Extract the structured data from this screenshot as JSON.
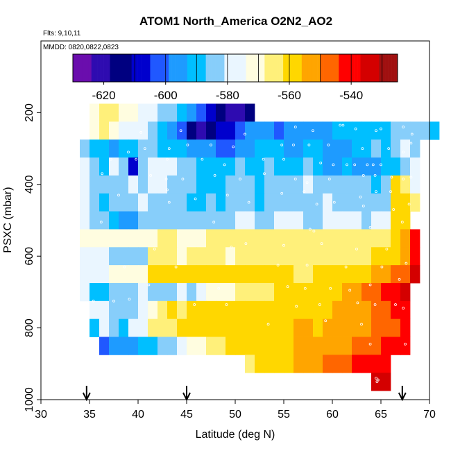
{
  "chart_data": {
    "type": "heatmap",
    "title": "ATOM1 North_America O2N2_AO2",
    "flights_note": "Flts: 9,10,11",
    "dates_note": "MMDD: 0820,0822,0823",
    "xlabel": "Latitude (deg N)",
    "ylabel": "PSXC (mbar)",
    "xlim": [
      30,
      70
    ],
    "ylim": [
      1000,
      0
    ],
    "x_ticks": [
      30,
      35,
      40,
      45,
      50,
      55,
      60,
      65,
      70
    ],
    "y_ticks": [
      200,
      400,
      600,
      800,
      1000
    ],
    "x_tick_labels": [
      "30",
      "35",
      "40",
      "45",
      "50",
      "55",
      "60",
      "65",
      "70"
    ],
    "y_tick_labels": [
      "200",
      "400",
      "600",
      "800",
      "1000"
    ],
    "colorbar": {
      "min": -630,
      "max": -525,
      "ticks": [
        -620,
        -600,
        -580,
        -560,
        -540
      ],
      "tick_labels": [
        "-620",
        "-600",
        "-580",
        "-560",
        "-540"
      ],
      "breaks": [
        -610,
        -600,
        -590,
        -580,
        -570,
        -560,
        -550,
        -540,
        -530
      ],
      "colors": [
        "#6a0dad",
        "#2e0bb0",
        "#000080",
        "#0000cd",
        "#2058ff",
        "#1e9bff",
        "#00bfff",
        "#87cefa",
        "#eaf6ff",
        "#fffde0",
        "#fff07a",
        "#ffd700",
        "#ffa500",
        "#ff6600",
        "#ff0000",
        "#d40000",
        "#a01010"
      ]
    },
    "lat_bin_width": 1,
    "pressure_bin_width": 50,
    "lat_start": 35,
    "grid_rows": [
      {
        "p": 200,
        "lat0": 35,
        "values": [
          -574,
          -565,
          -567,
          -572,
          -574,
          -578,
          -580,
          -584,
          -586,
          -590,
          -595,
          -600,
          -608,
          -614,
          -620,
          -618,
          -612
        ]
      },
      {
        "p": 250,
        "lat0": 35,
        "values": [
          -572,
          -568,
          -574,
          -578,
          -576,
          -575,
          -582,
          -592,
          -598,
          -605,
          -615,
          -618,
          -614,
          -610,
          -606,
          -602,
          -598,
          -596,
          -598,
          -600,
          -598,
          -596,
          -594,
          -596,
          -594,
          -592,
          -590,
          -588,
          -592,
          -590,
          -588,
          -586,
          -585,
          -584,
          -586,
          -592
        ]
      },
      {
        "p": 300,
        "lat0": 34,
        "values": [
          -582,
          -588,
          -592,
          -594,
          -590,
          -588,
          -582,
          -584,
          -588,
          -590,
          -592,
          -596,
          -598,
          -598,
          -600,
          -602,
          -596,
          -594,
          -590,
          -588,
          -592,
          -598,
          -594,
          -590,
          -592,
          -596,
          -598,
          -594,
          -590,
          -588,
          -586,
          -590,
          -584,
          -580,
          -582
        ]
      },
      {
        "p": 350,
        "lat0": 34,
        "values": [
          -580,
          -585,
          -588,
          -575,
          -582,
          -608,
          -586,
          -580,
          -579,
          -578,
          -582,
          -586,
          -588,
          -590,
          -592,
          -588,
          -586,
          -588,
          -590,
          -584,
          -588,
          -592,
          -592,
          -586,
          -590,
          -596,
          -596,
          -592,
          -594,
          -596,
          -598,
          -592,
          -588,
          -584,
          -578
        ]
      },
      {
        "p": 400,
        "lat0": 34,
        "values": [
          -580,
          -582,
          -586,
          -584,
          -582,
          -580,
          -584,
          -580,
          -578,
          -582,
          -584,
          -586,
          -588,
          -590,
          -590,
          -584,
          -582,
          -584,
          -588,
          -586,
          -586,
          -584,
          -582,
          -580,
          -582,
          -584,
          -584,
          -584,
          -582,
          -584,
          -588,
          -586,
          -560,
          -568,
          -575
        ]
      },
      {
        "p": 450,
        "lat0": 34,
        "values": [
          -580,
          -584,
          -588,
          -586,
          -584,
          -586,
          -580,
          -584,
          -582,
          -584,
          -586,
          -590,
          -588,
          -586,
          -588,
          -586,
          -584,
          -586,
          -588,
          -584,
          -584,
          -582,
          -584,
          -586,
          -582,
          -580,
          -582,
          -584,
          -584,
          -586,
          -586,
          -582,
          -556,
          -560,
          -566
        ]
      },
      {
        "p": 500,
        "lat0": 34,
        "values": [
          -578,
          -584,
          -586,
          -590,
          -594,
          -598,
          -584,
          -582,
          -582,
          -582,
          -582,
          -584,
          -582,
          -582,
          -582,
          -582,
          -580,
          -580,
          -582,
          -582,
          -580,
          -580,
          -580,
          -582,
          -582,
          -580,
          -580,
          -580,
          -580,
          -582,
          -580,
          -580,
          -556,
          -562
        ]
      },
      {
        "p": 550,
        "lat0": 34,
        "values": [
          -574,
          -572,
          -570,
          -570,
          -570,
          -572,
          -570,
          -570,
          -568,
          -568,
          -570,
          -570,
          -570,
          -568,
          -568,
          -568,
          -568,
          -566,
          -568,
          -568,
          -568,
          -566,
          -568,
          -568,
          -566,
          -568,
          -568,
          -566,
          -566,
          -566,
          -566,
          -564,
          -560,
          -552,
          -540
        ]
      },
      {
        "p": 600,
        "lat0": 34,
        "values": [
          -580,
          -575,
          -578,
          -582,
          -584,
          -586,
          -586,
          -566,
          -565,
          -568,
          -570,
          -566,
          -568,
          -566,
          -567,
          -570,
          -568,
          -567,
          -566,
          -566,
          -568,
          -566,
          -565,
          -564,
          -565,
          -565,
          -566,
          -566,
          -564,
          -566,
          -562,
          -560,
          -556,
          -552,
          -540
        ]
      },
      {
        "p": 650,
        "lat0": 34,
        "values": [
          -578,
          -575,
          -575,
          -574,
          -573,
          -570,
          -570,
          -562,
          -560,
          -562,
          -560,
          -560,
          -560,
          -562,
          -562,
          -560,
          -560,
          -560,
          -558,
          -558,
          -558,
          -562,
          -564,
          -564,
          -562,
          -562,
          -560,
          -558,
          -556,
          -556,
          -555,
          -552,
          -548,
          -544,
          -535
        ]
      },
      {
        "p": 700,
        "lat0": 34,
        "values": [
          -578,
          -590,
          -588,
          -586,
          -584,
          -582,
          -580,
          -582,
          -584,
          -586,
          -580,
          -582,
          -576,
          -572,
          -572,
          -570,
          -568,
          -568,
          -566,
          -564,
          -562,
          -562,
          -562,
          -560,
          -558,
          -558,
          -556,
          -554,
          -552,
          -548,
          -546,
          -542,
          -538,
          -536
        ]
      },
      {
        "p": 750,
        "lat0": 35,
        "values": [
          -576,
          -580,
          -584,
          -586,
          -582,
          -578,
          -572,
          -564,
          -562,
          -564,
          -562,
          -560,
          -562,
          -560,
          -560,
          -560,
          -562,
          -562,
          -562,
          -560,
          -560,
          -558,
          -558,
          -558,
          -556,
          -555,
          -554,
          -552,
          -550,
          -548,
          -545,
          -540,
          -538
        ]
      },
      {
        "p": 800,
        "lat0": 35,
        "values": [
          -590,
          -576,
          -584,
          -588,
          -580,
          -576,
          -568,
          -568,
          -563,
          -562,
          -560,
          -560,
          -561,
          -560,
          -558,
          -558,
          -558,
          -556,
          -557,
          -556,
          -556,
          -555,
          -555,
          -556,
          -555,
          -554,
          -553,
          -552,
          -550,
          -548,
          -546,
          -544,
          -540
        ]
      },
      {
        "p": 850,
        "lat0": 36,
        "values": [
          -600,
          -595,
          -594,
          -594,
          -590,
          -588,
          -586,
          -584,
          -578,
          -574,
          -570,
          -566,
          -564,
          -562,
          -560,
          -560,
          -560,
          -558,
          -558,
          -556,
          -555,
          -555,
          -554,
          -553,
          -552,
          -550,
          -548,
          -546,
          -544,
          -542,
          -540,
          -538
        ]
      },
      {
        "p": 900,
        "lat0": 51,
        "values": [
          -564,
          -562,
          -560,
          -558,
          -556,
          -554,
          -552,
          -550,
          -548,
          -546,
          -544,
          -542,
          -540,
          -540,
          -538
        ]
      },
      {
        "p": 950,
        "lat0": 64,
        "values": [
          -532,
          -532
        ]
      }
    ],
    "markers": [
      {
        "label": "arrow-1",
        "lat": 34.7
      },
      {
        "label": "arrow-2",
        "lat": 45.0
      },
      {
        "label": "arrow-3",
        "lat": 67.2
      }
    ],
    "sample_points": [
      [
        40.3,
        255
      ],
      [
        44.4,
        250
      ],
      [
        51.0,
        260
      ],
      [
        56.2,
        240
      ],
      [
        58.0,
        250
      ],
      [
        60.8,
        235
      ],
      [
        61.1,
        235
      ],
      [
        62.4,
        245
      ],
      [
        64.5,
        250
      ],
      [
        65.0,
        245
      ],
      [
        67.3,
        240
      ],
      [
        68.2,
        260
      ],
      [
        39.0,
        310
      ],
      [
        40.7,
        300
      ],
      [
        43.2,
        300
      ],
      [
        45.1,
        290
      ],
      [
        47.5,
        290
      ],
      [
        49.8,
        295
      ],
      [
        54.8,
        290
      ],
      [
        56.0,
        290
      ],
      [
        57.6,
        290
      ],
      [
        59.6,
        290
      ],
      [
        63.1,
        300
      ],
      [
        65.8,
        300
      ],
      [
        67.3,
        310
      ],
      [
        68.1,
        285
      ],
      [
        37.2,
        330
      ],
      [
        39.8,
        330
      ],
      [
        43.0,
        330
      ],
      [
        46.6,
        330
      ],
      [
        48.9,
        345
      ],
      [
        52.9,
        330
      ],
      [
        55.0,
        330
      ],
      [
        58.8,
        340
      ],
      [
        60.1,
        345
      ],
      [
        61.5,
        345
      ],
      [
        62.3,
        345
      ],
      [
        63.6,
        345
      ],
      [
        64.2,
        345
      ],
      [
        65.0,
        345
      ],
      [
        36.3,
        370
      ],
      [
        41.3,
        375
      ],
      [
        42.9,
        385
      ],
      [
        44.6,
        385
      ],
      [
        47.9,
        375
      ],
      [
        50.5,
        385
      ],
      [
        53.0,
        370
      ],
      [
        56.2,
        385
      ],
      [
        57.4,
        395
      ],
      [
        59.7,
        385
      ],
      [
        63.2,
        375
      ],
      [
        64.4,
        375
      ],
      [
        66.1,
        380
      ],
      [
        67.3,
        385
      ],
      [
        68.1,
        380
      ],
      [
        38.0,
        430
      ],
      [
        43.0,
        415
      ],
      [
        45.9,
        440
      ],
      [
        49.2,
        430
      ],
      [
        54.8,
        425
      ],
      [
        57.1,
        420
      ],
      [
        62.9,
        435
      ],
      [
        64.5,
        420
      ],
      [
        66.0,
        420
      ],
      [
        43.2,
        450
      ],
      [
        51.4,
        450
      ],
      [
        58.4,
        455
      ],
      [
        60.2,
        450
      ],
      [
        63.2,
        460
      ],
      [
        66.3,
        470
      ],
      [
        67.9,
        455
      ],
      [
        36.2,
        505
      ],
      [
        47.8,
        505
      ],
      [
        57.7,
        525
      ],
      [
        58.1,
        530
      ],
      [
        63.9,
        520
      ],
      [
        67.2,
        505
      ],
      [
        41.7,
        580
      ],
      [
        49.6,
        575
      ],
      [
        51.1,
        565
      ],
      [
        55.0,
        570
      ],
      [
        58.9,
        565
      ],
      [
        62.5,
        580
      ],
      [
        65.6,
        580
      ],
      [
        38.6,
        630
      ],
      [
        43.9,
        630
      ],
      [
        54.4,
        625
      ],
      [
        57.4,
        625
      ],
      [
        61.4,
        630
      ],
      [
        65.1,
        630
      ],
      [
        67.6,
        620
      ],
      [
        41.1,
        680
      ],
      [
        48.3,
        690
      ],
      [
        55.4,
        685
      ],
      [
        57.2,
        690
      ],
      [
        59.8,
        690
      ],
      [
        61.8,
        695
      ],
      [
        63.9,
        680
      ],
      [
        66.9,
        665
      ],
      [
        35.4,
        725
      ],
      [
        37.5,
        725
      ],
      [
        39.1,
        720
      ],
      [
        45.8,
        735
      ],
      [
        49.1,
        735
      ],
      [
        56.3,
        740
      ],
      [
        58.7,
        735
      ],
      [
        62.6,
        730
      ],
      [
        64.4,
        735
      ],
      [
        66.5,
        735
      ],
      [
        67.3,
        745
      ],
      [
        53.4,
        790
      ],
      [
        59.3,
        780
      ],
      [
        63.0,
        790
      ],
      [
        63.9,
        845
      ],
      [
        67.5,
        845
      ],
      [
        64.5,
        940
      ],
      [
        64.6,
        950
      ],
      [
        64.7,
        945
      ]
    ]
  }
}
